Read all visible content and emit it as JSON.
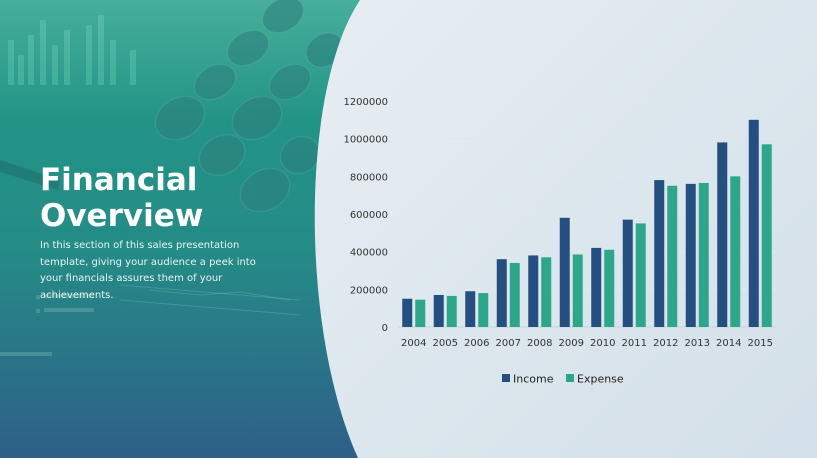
{
  "slide": {
    "title": "Financial Overview",
    "subtitle": "In this section of this sales presentation template, giving your audience a peek into your financials assures them of your achievements."
  },
  "colors": {
    "income": "#244f80",
    "expense": "#2ea68c",
    "panel_top": "#1f9c86",
    "panel_bottom": "#2e5f88"
  },
  "chart_data": {
    "type": "bar",
    "categories": [
      "2004",
      "2005",
      "2006",
      "2007",
      "2008",
      "2009",
      "2010",
      "2011",
      "2012",
      "2013",
      "2014",
      "2015"
    ],
    "series": [
      {
        "name": "Income",
        "values": [
          150000,
          170000,
          190000,
          360000,
          380000,
          580000,
          420000,
          570000,
          780000,
          760000,
          980000,
          1100000
        ]
      },
      {
        "name": "Expense",
        "values": [
          145000,
          165000,
          180000,
          340000,
          370000,
          385000,
          410000,
          550000,
          750000,
          765000,
          800000,
          970000
        ]
      }
    ],
    "ylim": [
      0,
      1200000
    ],
    "yticks": [
      "0",
      "200000",
      "400000",
      "600000",
      "800000",
      "1000000",
      "1200000"
    ],
    "title": "",
    "xlabel": "",
    "ylabel": "",
    "legend_position": "bottom-center",
    "grid": true
  }
}
